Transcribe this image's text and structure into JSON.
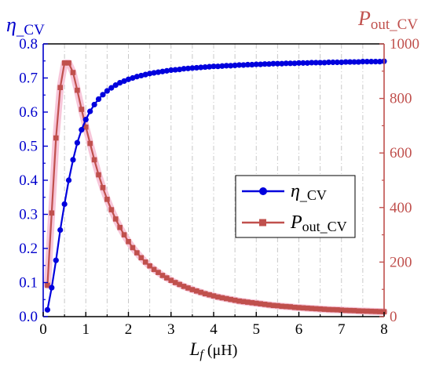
{
  "chart_data": {
    "type": "line",
    "xlabel": {
      "main": "L",
      "sub": "f",
      "unit": " (μH)"
    },
    "left_axis_title": {
      "main": "η",
      "sub": "_CV"
    },
    "right_axis_title": {
      "main": "P",
      "sub": "out_CV"
    },
    "xlim": [
      0,
      8
    ],
    "ylim_left": [
      0,
      0.8
    ],
    "ylim_right": [
      0,
      1000
    ],
    "x_ticks": [
      "0",
      "1",
      "2",
      "3",
      "4",
      "5",
      "6",
      "7",
      "8"
    ],
    "y_left_ticks": [
      "0.0",
      "0.1",
      "0.2",
      "0.3",
      "0.4",
      "0.5",
      "0.6",
      "0.7",
      "0.8"
    ],
    "y_right_ticks": [
      "0",
      "200",
      "400",
      "600",
      "800",
      "1000"
    ],
    "grid": "vertical dash-dot lines at major and minor x ticks",
    "legend_placement": "center-right",
    "colors": {
      "eta": "#0000dd",
      "pout": "#c0504d",
      "pout_glow": "#f7c6d9",
      "left_axis": "#0000cc",
      "right_axis": "#c0504d",
      "grid": "#c8c8c8"
    },
    "series": [
      {
        "key": "eta",
        "name": "η_CV",
        "legend_main": "η",
        "legend_sub": "_CV",
        "axis": "left",
        "marker": "circle",
        "x": [
          0.1,
          0.2,
          0.3,
          0.4,
          0.5,
          0.6,
          0.7,
          0.8,
          0.9,
          1.0,
          1.1,
          1.2,
          1.3,
          1.4,
          1.5,
          1.6,
          1.7,
          1.8,
          1.9,
          2.0,
          2.1,
          2.2,
          2.3,
          2.4,
          2.5,
          2.6,
          2.7,
          2.8,
          2.9,
          3.0,
          3.1,
          3.2,
          3.3,
          3.4,
          3.5,
          3.6,
          3.7,
          3.8,
          3.9,
          4.0,
          4.1,
          4.2,
          4.3,
          4.4,
          4.5,
          4.6,
          4.7,
          4.8,
          4.9,
          5.0,
          5.1,
          5.2,
          5.3,
          5.4,
          5.5,
          5.6,
          5.7,
          5.8,
          5.9,
          6.0,
          6.1,
          6.2,
          6.3,
          6.4,
          6.5,
          6.6,
          6.7,
          6.8,
          6.9,
          7.0,
          7.1,
          7.2,
          7.3,
          7.4,
          7.5,
          7.6,
          7.7,
          7.8,
          7.9,
          8.0
        ],
        "values": [
          0.02,
          0.085,
          0.165,
          0.254,
          0.33,
          0.4,
          0.46,
          0.51,
          0.548,
          0.578,
          0.602,
          0.622,
          0.638,
          0.651,
          0.662,
          0.671,
          0.679,
          0.686,
          0.691,
          0.696,
          0.7,
          0.704,
          0.707,
          0.71,
          0.713,
          0.715,
          0.717,
          0.719,
          0.721,
          0.723,
          0.724,
          0.725,
          0.727,
          0.728,
          0.729,
          0.73,
          0.731,
          0.732,
          0.733,
          0.734,
          0.734,
          0.735,
          0.736,
          0.736,
          0.737,
          0.738,
          0.738,
          0.739,
          0.739,
          0.74,
          0.74,
          0.741,
          0.741,
          0.742,
          0.742,
          0.742,
          0.743,
          0.743,
          0.743,
          0.744,
          0.744,
          0.744,
          0.745,
          0.745,
          0.745,
          0.745,
          0.746,
          0.746,
          0.746,
          0.746,
          0.747,
          0.747,
          0.747,
          0.747,
          0.748,
          0.748,
          0.748,
          0.748,
          0.748,
          0.749
        ]
      },
      {
        "key": "pout",
        "name": "P_out_CV",
        "legend_main": "P",
        "legend_sub": "out_CV",
        "axis": "right",
        "marker": "square",
        "x": [
          0.1,
          0.2,
          0.3,
          0.4,
          0.5,
          0.6,
          0.7,
          0.8,
          0.9,
          1.0,
          1.1,
          1.2,
          1.3,
          1.4,
          1.5,
          1.6,
          1.7,
          1.8,
          1.9,
          2.0,
          2.1,
          2.2,
          2.3,
          2.4,
          2.5,
          2.6,
          2.7,
          2.8,
          2.9,
          3.0,
          3.1,
          3.2,
          3.3,
          3.4,
          3.5,
          3.6,
          3.7,
          3.8,
          3.9,
          4.0,
          4.1,
          4.2,
          4.3,
          4.4,
          4.5,
          4.6,
          4.7,
          4.8,
          4.9,
          5.0,
          5.1,
          5.2,
          5.3,
          5.4,
          5.5,
          5.6,
          5.7,
          5.8,
          5.9,
          6.0,
          6.1,
          6.2,
          6.3,
          6.4,
          6.5,
          6.6,
          6.7,
          6.8,
          6.9,
          7.0,
          7.1,
          7.2,
          7.3,
          7.4,
          7.5,
          7.6,
          7.7,
          7.8,
          7.9,
          8.0
        ],
        "values": [
          115,
          380,
          655,
          840,
          930,
          930,
          895,
          830,
          760,
          695,
          635,
          575,
          520,
          473,
          430,
          392,
          358,
          327,
          300,
          275,
          253,
          234,
          216,
          200,
          186,
          173,
          162,
          151,
          142,
          133,
          125,
          118,
          111,
          105,
          99,
          94,
          89,
          84,
          80,
          76,
          72,
          69,
          66,
          63,
          60,
          57,
          55,
          53,
          51,
          49,
          47,
          45,
          43,
          41,
          40,
          38,
          37,
          36,
          34,
          33,
          32,
          31,
          30,
          29,
          28,
          27,
          26,
          25.5,
          25,
          24,
          23,
          22.5,
          22,
          21,
          20.5,
          20,
          19.5,
          19,
          18.5,
          18
        ]
      }
    ]
  }
}
